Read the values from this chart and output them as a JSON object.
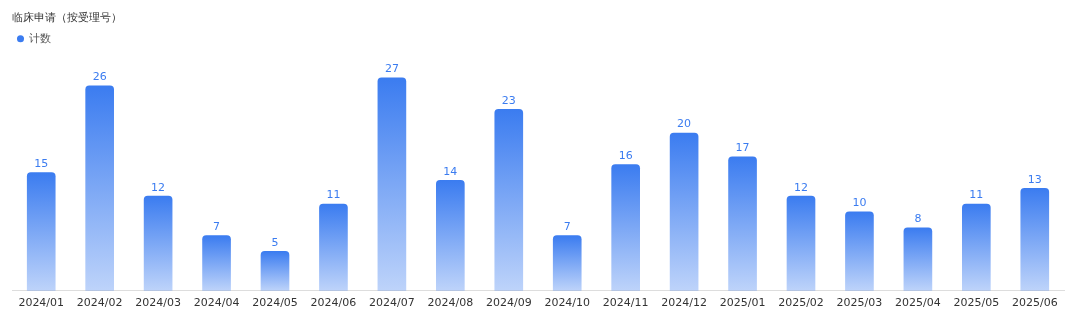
{
  "chart_data": {
    "type": "bar",
    "title": "临床申请（按受理号）",
    "categories": [
      "2024/01",
      "2024/02",
      "2024/03",
      "2024/04",
      "2024/05",
      "2024/06",
      "2024/07",
      "2024/08",
      "2024/09",
      "2024/10",
      "2024/11",
      "2024/12",
      "2025/01",
      "2025/02",
      "2025/03",
      "2025/04",
      "2025/05",
      "2025/06"
    ],
    "series": [
      {
        "name": "计数",
        "color": "#3b7cf0",
        "values": [
          15,
          26,
          12,
          7,
          5,
          11,
          27,
          14,
          23,
          7,
          16,
          20,
          17,
          12,
          10,
          8,
          11,
          13
        ]
      }
    ],
    "data_labels": true,
    "legend": "top left",
    "grid": false
  }
}
